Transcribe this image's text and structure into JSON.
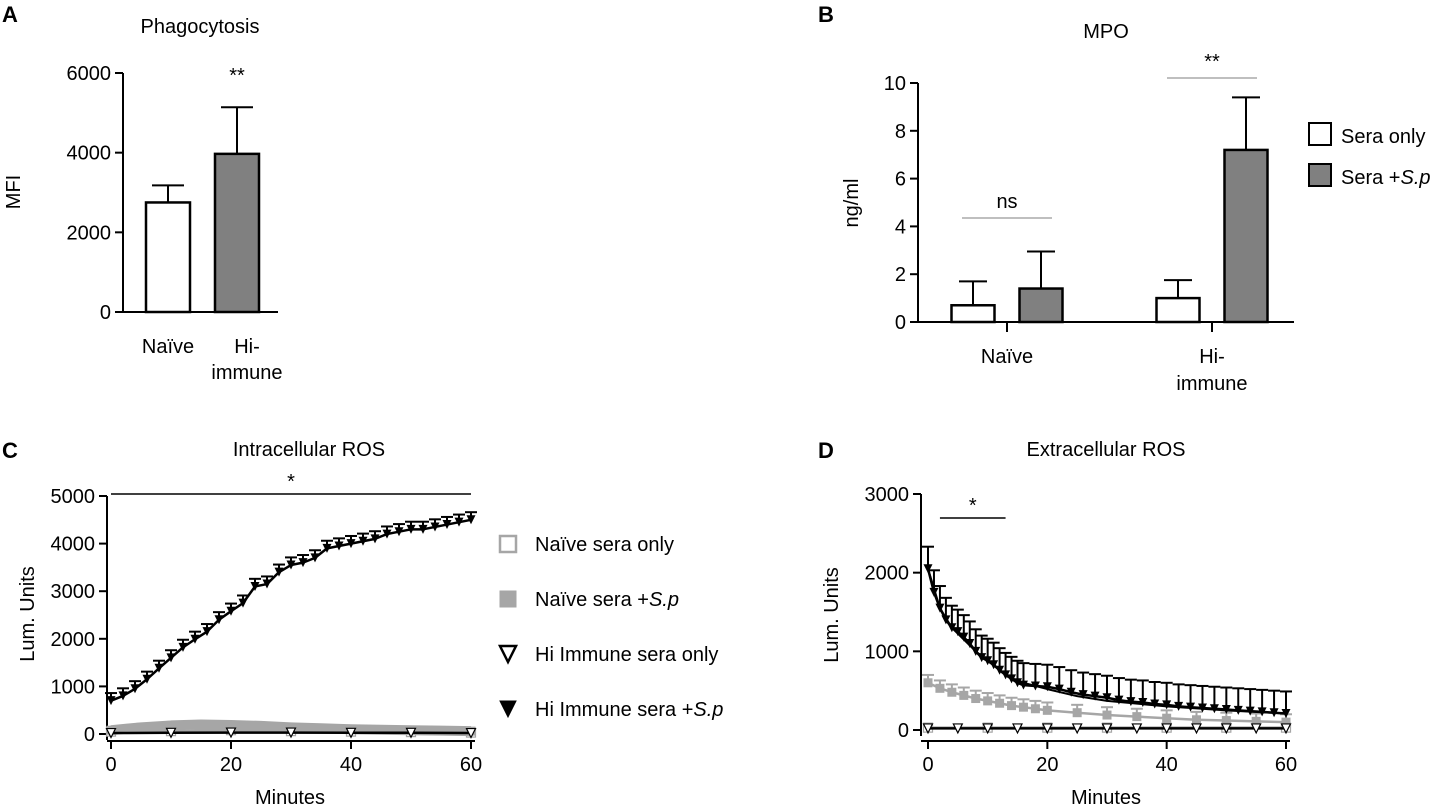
{
  "panel_labels": [
    "A",
    "B",
    "C",
    "D"
  ],
  "chart_data": [
    {
      "panel": "A",
      "type": "bar",
      "title": "Phagocytosis",
      "ylabel": "MFI",
      "xlabel": "",
      "ylim": [
        0,
        6000
      ],
      "yticks": [
        "0",
        "2000",
        "4000",
        "6000"
      ],
      "categories": [
        [
          "Naïve"
        ],
        [
          "Hi-",
          "immune"
        ]
      ],
      "values": [
        2750,
        3970
      ],
      "errors": [
        430,
        1170
      ],
      "fills": [
        "#ffffff",
        "#808080"
      ],
      "significance": [
        {
          "text": "**",
          "category": 1
        }
      ]
    },
    {
      "panel": "B",
      "type": "bar",
      "title": "MPO",
      "ylabel": "ng/ml",
      "xlabel": "",
      "ylim": [
        0,
        10
      ],
      "yticks": [
        "0",
        "2",
        "4",
        "6",
        "8",
        "10"
      ],
      "categories": [
        [
          "Naïve"
        ],
        [
          "Hi-",
          "immune"
        ]
      ],
      "series": [
        {
          "name": "Sera only",
          "prefix": "Sera only",
          "italic": "",
          "color": "#ffffff",
          "values": [
            0.7,
            1.0
          ],
          "errors": [
            1.0,
            0.75
          ]
        },
        {
          "name": "Sera +S.p",
          "prefix": "Sera +",
          "italic": "S.p",
          "color": "#808080",
          "values": [
            1.4,
            7.2
          ],
          "errors": [
            1.55,
            2.2
          ]
        }
      ],
      "significance": [
        {
          "text": "ns",
          "category": 0
        },
        {
          "text": "**",
          "category": 1
        }
      ]
    },
    {
      "panel": "C",
      "type": "line",
      "title": "Intracellular ROS",
      "ylabel": "Lum. Units",
      "xlabel": "Minutes",
      "xlim": [
        0,
        60
      ],
      "ylim": [
        0,
        5000
      ],
      "xticks": [
        "0",
        "20",
        "40",
        "60"
      ],
      "yticks": [
        "0",
        "1000",
        "2000",
        "3000",
        "4000",
        "5000"
      ],
      "series": [
        {
          "name": "Naïve sera only",
          "prefix": "Naïve sera only",
          "italic": "",
          "marker": "square-open",
          "color": "#a6a6a6",
          "x": [
            0,
            10,
            20,
            30,
            40,
            50,
            60
          ],
          "y": [
            50,
            60,
            80,
            60,
            50,
            40,
            30
          ]
        },
        {
          "name": "Naïve sera +S.p",
          "prefix": "Naïve sera +",
          "italic": "S.p",
          "marker": "square-filled",
          "color": "#a6a6a6",
          "x": [
            0,
            5,
            10,
            15,
            20,
            25,
            30,
            35,
            40,
            45,
            50,
            55,
            60
          ],
          "y": [
            80,
            140,
            180,
            200,
            190,
            170,
            140,
            120,
            100,
            90,
            80,
            70,
            60
          ]
        },
        {
          "name": "Hi Immune sera only",
          "prefix": "Hi Immune sera only",
          "italic": "",
          "marker": "triangle-open",
          "color": "#000000",
          "x": [
            0,
            10,
            20,
            30,
            40,
            50,
            60
          ],
          "y": [
            20,
            25,
            30,
            30,
            25,
            25,
            20
          ]
        },
        {
          "name": "Hi Immune sera +S.p",
          "prefix": "Hi Immune sera +",
          "italic": "S.p",
          "marker": "triangle-filled",
          "color": "#000000",
          "x": [
            0,
            2,
            4,
            6,
            8,
            10,
            12,
            14,
            16,
            18,
            20,
            22,
            24,
            26,
            28,
            30,
            32,
            34,
            36,
            38,
            40,
            42,
            44,
            46,
            48,
            50,
            52,
            54,
            56,
            58,
            60
          ],
          "y": [
            700,
            800,
            950,
            1150,
            1380,
            1600,
            1820,
            1990,
            2150,
            2400,
            2580,
            2750,
            3100,
            3150,
            3400,
            3550,
            3600,
            3700,
            3900,
            3950,
            4000,
            4050,
            4100,
            4200,
            4250,
            4300,
            4300,
            4350,
            4400,
            4450,
            4500
          ],
          "err": 160
        }
      ],
      "significance": [
        {
          "text": "*",
          "x_range": [
            0,
            60
          ]
        }
      ]
    },
    {
      "panel": "D",
      "type": "line",
      "title": "Extracellular ROS",
      "ylabel": "Lum. Units",
      "xlabel": "Minutes",
      "xlim": [
        0,
        60
      ],
      "ylim": [
        0,
        3000
      ],
      "xticks": [
        "0",
        "20",
        "40",
        "60"
      ],
      "yticks": [
        "0",
        "1000",
        "2000",
        "3000"
      ],
      "series": [
        {
          "name": "Naïve sera only",
          "marker": "square-open",
          "color": "#a6a6a6",
          "x": [
            0,
            10,
            20,
            30,
            40,
            50,
            60
          ],
          "y": [
            30,
            30,
            30,
            30,
            30,
            30,
            30
          ]
        },
        {
          "name": "Naïve sera +S.p",
          "marker": "square-filled",
          "color": "#a6a6a6",
          "x": [
            0,
            2,
            4,
            6,
            8,
            10,
            12,
            14,
            16,
            18,
            20,
            25,
            30,
            35,
            40,
            45,
            50,
            55,
            60
          ],
          "y": [
            600,
            530,
            480,
            440,
            400,
            370,
            340,
            310,
            290,
            270,
            250,
            220,
            190,
            170,
            150,
            130,
            120,
            110,
            100
          ],
          "err": 100
        },
        {
          "name": "Hi Immune sera only",
          "marker": "triangle-open",
          "color": "#000000",
          "x": [
            0,
            5,
            10,
            15,
            20,
            25,
            30,
            35,
            40,
            45,
            50,
            55,
            60
          ],
          "y": [
            20,
            20,
            20,
            20,
            20,
            20,
            20,
            20,
            20,
            20,
            20,
            20,
            20
          ]
        },
        {
          "name": "Hi Immune sera +S.p",
          "marker": "triangle-filled",
          "color": "#000000",
          "x": [
            0,
            1,
            2,
            3,
            4,
            5,
            6,
            7,
            8,
            9,
            10,
            11,
            12,
            13,
            14,
            15,
            16,
            18,
            20,
            22,
            24,
            26,
            28,
            30,
            32,
            34,
            36,
            38,
            40,
            42,
            44,
            46,
            48,
            50,
            52,
            54,
            56,
            58,
            60
          ],
          "y": [
            2050,
            1750,
            1550,
            1400,
            1300,
            1250,
            1180,
            1100,
            1000,
            920,
            880,
            830,
            760,
            700,
            650,
            600,
            570,
            560,
            550,
            520,
            480,
            450,
            430,
            410,
            380,
            360,
            350,
            330,
            320,
            300,
            290,
            280,
            270,
            260,
            250,
            240,
            230,
            220,
            210
          ],
          "err": 280
        },
        {
          "name": "fit",
          "marker": "none",
          "color": "#000000",
          "x": [
            0,
            2,
            4,
            6,
            8,
            10,
            12,
            15,
            20,
            25,
            30,
            40,
            50,
            60
          ],
          "y": [
            2050,
            1550,
            1300,
            1150,
            1000,
            880,
            760,
            620,
            520,
            430,
            370,
            300,
            250,
            210
          ]
        }
      ],
      "significance": [
        {
          "text": "*",
          "x_range": [
            2,
            13
          ]
        }
      ]
    }
  ]
}
